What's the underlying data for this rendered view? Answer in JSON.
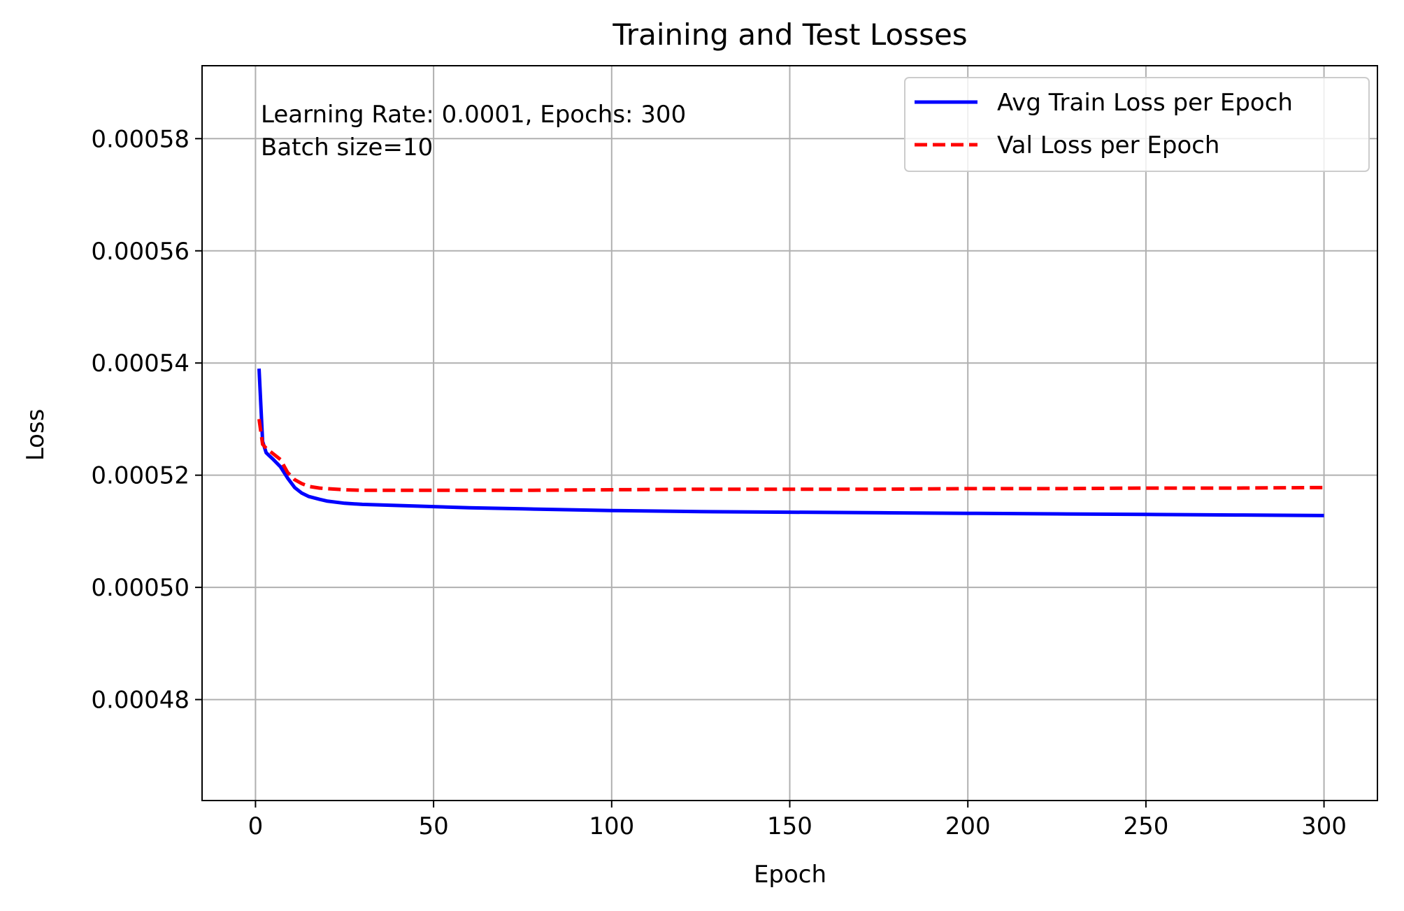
{
  "chart_data": {
    "type": "line",
    "title": "Training and Test Losses",
    "xlabel": "Epoch",
    "ylabel": "Loss",
    "xlim": [
      -15,
      315
    ],
    "ylim": [
      0.000462,
      0.000593
    ],
    "xticks": [
      0,
      50,
      100,
      150,
      200,
      250,
      300
    ],
    "xtick_labels": [
      "0",
      "50",
      "100",
      "150",
      "200",
      "250",
      "300"
    ],
    "yticks": [
      0.00048,
      0.0005,
      0.00052,
      0.00054,
      0.00056,
      0.00058
    ],
    "ytick_labels": [
      "0.00048",
      "0.00050",
      "0.00052",
      "0.00054",
      "0.00056",
      "0.00058"
    ],
    "grid": true,
    "legend_position": "top-right",
    "annotation_lines": [
      "Learning Rate: 0.0001, Epochs: 300",
      "Batch size=10"
    ],
    "series": [
      {
        "name": "Avg Train Loss per Epoch",
        "color": "#0000ff",
        "style": "solid",
        "x": [
          1,
          2,
          3,
          5,
          7,
          9,
          11,
          13,
          15,
          18,
          20,
          25,
          30,
          40,
          50,
          60,
          75,
          100,
          125,
          150,
          175,
          200,
          225,
          250,
          275,
          300
        ],
        "y": [
          0.000539,
          0.000526,
          0.000524,
          0.0005228,
          0.0005215,
          0.0005195,
          0.0005178,
          0.0005168,
          0.0005162,
          0.0005157,
          0.0005154,
          0.000515,
          0.0005148,
          0.0005146,
          0.0005144,
          0.0005142,
          0.000514,
          0.0005137,
          0.0005135,
          0.0005134,
          0.0005133,
          0.0005132,
          0.0005131,
          0.000513,
          0.0005129,
          0.0005128
        ]
      },
      {
        "name": "Val Loss per Epoch",
        "color": "#ff0000",
        "style": "dashed",
        "x": [
          1,
          2,
          3,
          5,
          7,
          9,
          11,
          13,
          15,
          18,
          20,
          25,
          30,
          40,
          50,
          75,
          100,
          125,
          150,
          175,
          200,
          225,
          250,
          275,
          300
        ],
        "y": [
          0.00053,
          0.0005255,
          0.0005248,
          0.0005238,
          0.0005228,
          0.0005205,
          0.0005192,
          0.0005185,
          0.000518,
          0.0005177,
          0.0005176,
          0.0005174,
          0.0005173,
          0.0005173,
          0.0005173,
          0.0005173,
          0.0005174,
          0.0005175,
          0.0005175,
          0.0005175,
          0.0005176,
          0.0005176,
          0.0005177,
          0.0005177,
          0.0005178
        ]
      }
    ]
  }
}
